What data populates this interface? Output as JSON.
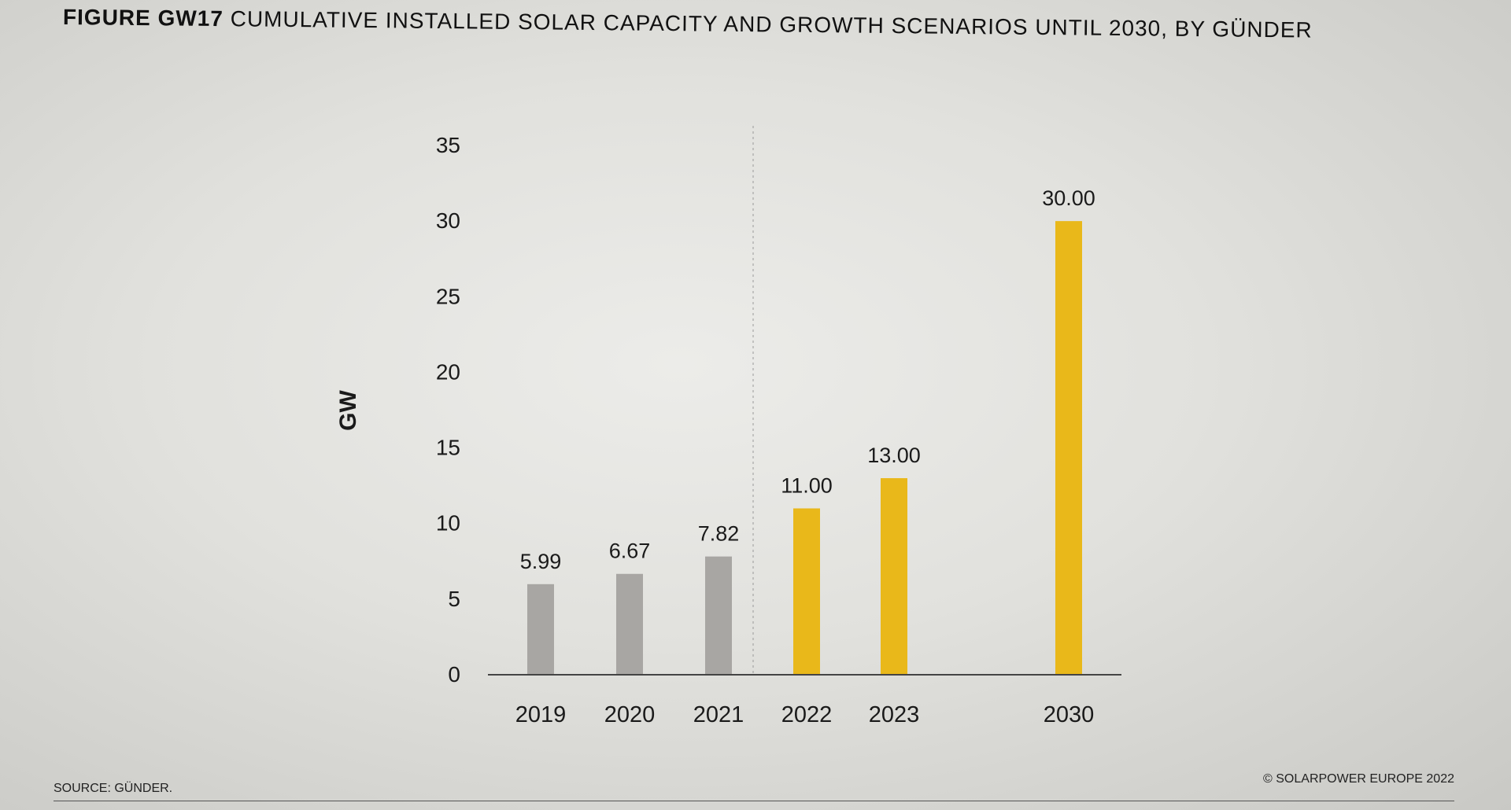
{
  "header": {
    "title_bold": "FIGURE GW17",
    "title_rest": " CUMULATIVE INSTALLED SOLAR CAPACITY AND GROWTH SCENARIOS UNTIL 2030, BY GÜNDER"
  },
  "footer": {
    "source": "SOURCE: GÜNDER.",
    "copyright": "© SOLARPOWER EUROPE 2022"
  },
  "colors": {
    "historical": "#a8a6a3",
    "scenario": "#e9b81a",
    "axis": "#444444",
    "text": "#1a1a1a"
  },
  "chart_data": {
    "type": "bar",
    "title": "FIGURE GW17 CUMULATIVE INSTALLED SOLAR CAPACITY AND GROWTH SCENARIOS UNTIL 2030, BY GÜNDER",
    "xlabel": "",
    "ylabel": "GW",
    "ylim": [
      0,
      35
    ],
    "yticks": [
      "0",
      "5",
      "10",
      "15",
      "20",
      "25",
      "30",
      "35"
    ],
    "grid": false,
    "categories": [
      "2019",
      "2020",
      "2021",
      "2022",
      "2023",
      "2030"
    ],
    "values": [
      5.99,
      6.67,
      7.82,
      11.0,
      13.0,
      30.0
    ],
    "value_labels": [
      "5.99",
      "6.67",
      "7.82",
      "11.00",
      "13.00",
      "30.00"
    ],
    "bar_groups": [
      "historical",
      "historical",
      "historical",
      "scenario",
      "scenario",
      "scenario"
    ],
    "divider_after_category": "2021"
  }
}
